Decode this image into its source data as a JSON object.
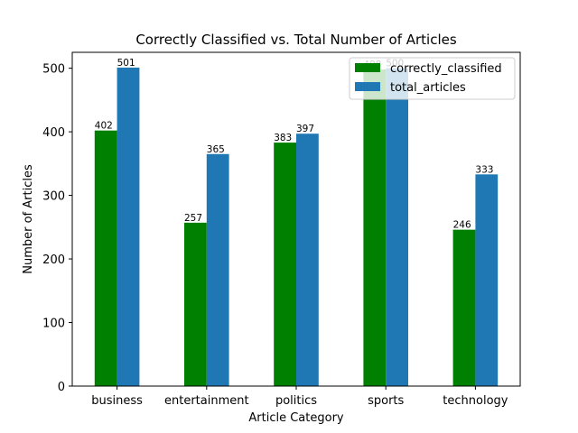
{
  "chart_data": {
    "type": "bar",
    "title": "Correctly Classified vs. Total Number of Articles",
    "xlabel": "Article Category",
    "ylabel": "Number of Articles",
    "categories": [
      "business",
      "entertainment",
      "politics",
      "sports",
      "technology"
    ],
    "series": [
      {
        "name": "correctly_classified",
        "color": "#008000",
        "values": [
          402,
          257,
          383,
          498,
          246
        ]
      },
      {
        "name": "total_articles",
        "color": "#1f77b4",
        "values": [
          501,
          365,
          397,
          500,
          333
        ]
      }
    ],
    "ylim": [
      0,
      525
    ],
    "yticks": [
      0,
      100,
      200,
      300,
      400,
      500
    ],
    "grid": false,
    "legend_position": "top-right"
  }
}
